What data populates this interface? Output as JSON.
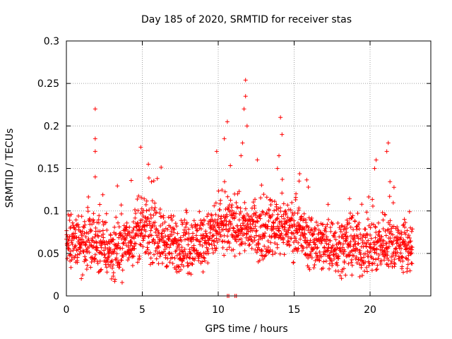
{
  "chart_data": {
    "type": "scatter",
    "title": "Day 185 of 2020, SRMTID for receiver stas",
    "xlabel": "GPS time / hours",
    "ylabel": "SRMTID / TECUs",
    "xlim": [
      0,
      24
    ],
    "ylim": [
      0,
      0.3
    ],
    "xticks": [
      0,
      5,
      10,
      15,
      20
    ],
    "xtick_labels": [
      "0",
      "5",
      "10",
      "15",
      "20"
    ],
    "yticks": [
      0,
      0.05,
      0.1,
      0.15,
      0.2,
      0.25,
      0.3
    ],
    "ytick_labels": [
      "0",
      "0.05",
      "0.1",
      "0.15",
      "0.2",
      "0.25",
      "0.3"
    ],
    "grid": true,
    "marker": "plus",
    "color": "#ff0000",
    "series": [
      {
        "name": "SRMTID",
        "data_range": [
          0,
          22.8
        ],
        "baseline_profile": [
          [
            0,
            0.065
          ],
          [
            1,
            0.062
          ],
          [
            2,
            0.06
          ],
          [
            3,
            0.052
          ],
          [
            4,
            0.062
          ],
          [
            5,
            0.078
          ],
          [
            6,
            0.072
          ],
          [
            7,
            0.06
          ],
          [
            8,
            0.058
          ],
          [
            9,
            0.065
          ],
          [
            10,
            0.078
          ],
          [
            11,
            0.085
          ],
          [
            12,
            0.08
          ],
          [
            13,
            0.075
          ],
          [
            14,
            0.085
          ],
          [
            15,
            0.078
          ],
          [
            16,
            0.065
          ],
          [
            17,
            0.06
          ],
          [
            18,
            0.06
          ],
          [
            19,
            0.062
          ],
          [
            20,
            0.055
          ],
          [
            21,
            0.065
          ],
          [
            22,
            0.058
          ],
          [
            22.8,
            0.055
          ]
        ],
        "notable_points": [
          {
            "x": 1.9,
            "y": 0.22
          },
          {
            "x": 1.9,
            "y": 0.185
          },
          {
            "x": 1.9,
            "y": 0.17
          },
          {
            "x": 1.9,
            "y": 0.14
          },
          {
            "x": 4.9,
            "y": 0.175
          },
          {
            "x": 5.4,
            "y": 0.155
          },
          {
            "x": 10.6,
            "y": 0.205
          },
          {
            "x": 10.4,
            "y": 0.185
          },
          {
            "x": 9.9,
            "y": 0.17
          },
          {
            "x": 11.8,
            "y": 0.254
          },
          {
            "x": 11.8,
            "y": 0.235
          },
          {
            "x": 11.7,
            "y": 0.22
          },
          {
            "x": 11.9,
            "y": 0.2
          },
          {
            "x": 11.6,
            "y": 0.18
          },
          {
            "x": 11.5,
            "y": 0.165
          },
          {
            "x": 14.1,
            "y": 0.21
          },
          {
            "x": 14.2,
            "y": 0.19
          },
          {
            "x": 14.0,
            "y": 0.165
          },
          {
            "x": 13.9,
            "y": 0.15
          },
          {
            "x": 21.2,
            "y": 0.18
          },
          {
            "x": 21.1,
            "y": 0.17
          },
          {
            "x": 20.4,
            "y": 0.16
          },
          {
            "x": 20.3,
            "y": 0.15
          }
        ],
        "zero_points": [
          {
            "x": 10.6,
            "y": 0
          },
          {
            "x": 10.7,
            "y": 0
          },
          {
            "x": 11.1,
            "y": 0
          },
          {
            "x": 11.2,
            "y": 0
          }
        ]
      }
    ]
  }
}
